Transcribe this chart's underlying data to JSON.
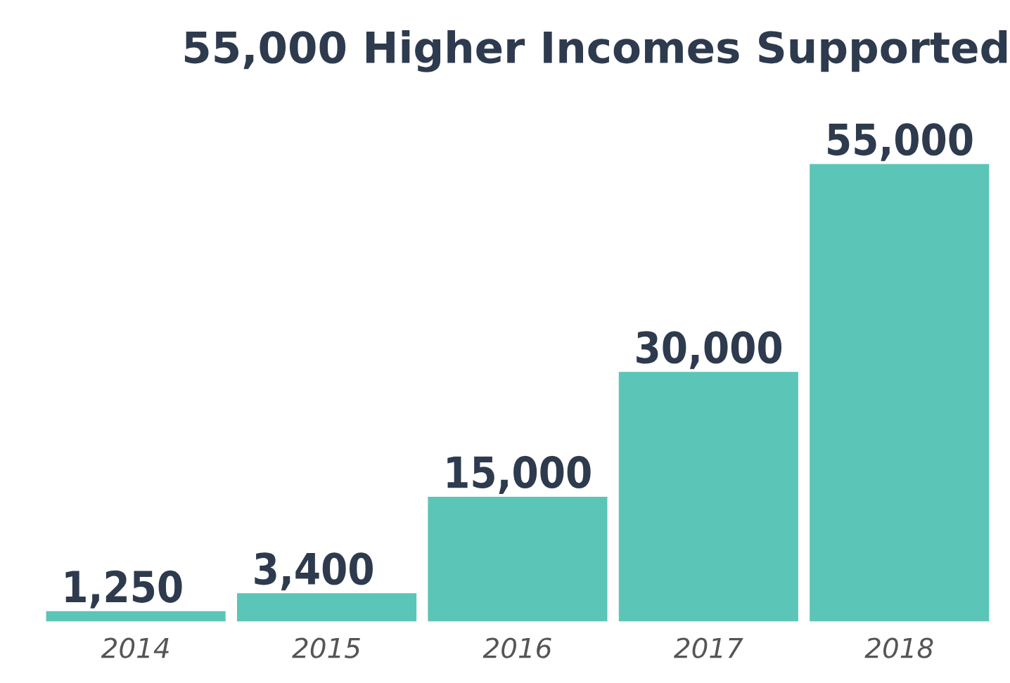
{
  "chart_data": {
    "type": "bar",
    "title": "55,000 Higher Incomes Supported",
    "categories": [
      "2014",
      "2015",
      "2016",
      "2017",
      "2018"
    ],
    "values": [
      1250,
      3400,
      15000,
      30000,
      55000
    ],
    "value_labels": [
      "1,250",
      "3,400",
      "15,000",
      "30,000",
      "55,000"
    ],
    "color": "#5bc5b8",
    "grid": false,
    "legend": false
  }
}
